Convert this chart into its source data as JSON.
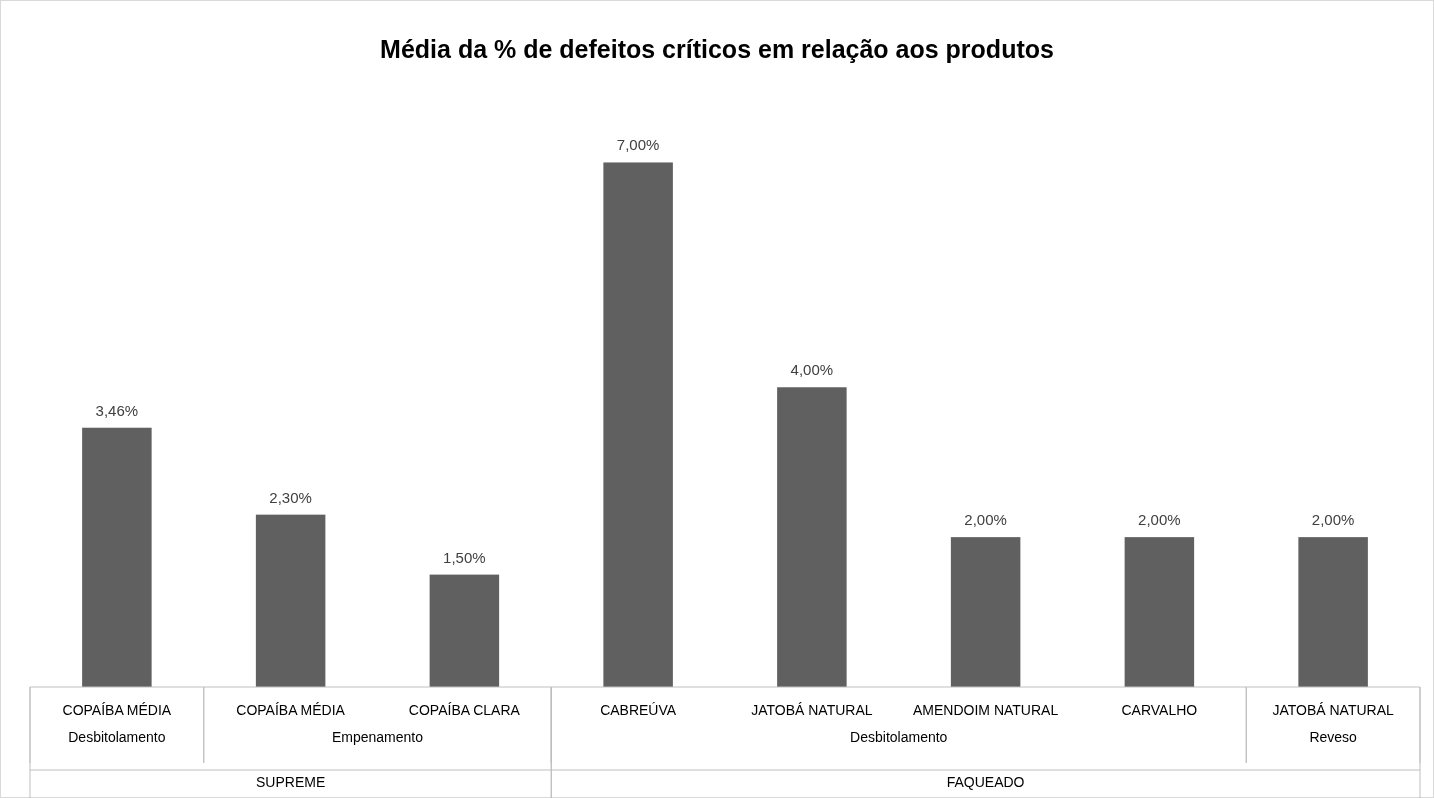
{
  "chart_data": {
    "type": "bar",
    "title": "Média da % de defeitos críticos em relação aos produtos",
    "categories": [
      "COPAÍBA MÉDIA",
      "COPAÍBA MÉDIA",
      "COPAÍBA CLARA",
      "CABREÚVA",
      "JATOBÁ NATURAL",
      "AMENDOIM NATURAL",
      "CARVALHO",
      "JATOBÁ NATURAL"
    ],
    "values": [
      3.46,
      2.3,
      1.5,
      7.0,
      4.0,
      2.0,
      2.0,
      2.0
    ],
    "value_labels": [
      "3,46%",
      "2,30%",
      "1,50%",
      "7,00%",
      "4,00%",
      "2,00%",
      "2,00%",
      "2,00%"
    ],
    "color": "#606060",
    "annotations": [
      "Desbitolamento",
      "Empenamento",
      "Desbitolamento",
      "Reveso",
      "SUPREME",
      "FAQUEADO"
    ],
    "grid": false
  }
}
